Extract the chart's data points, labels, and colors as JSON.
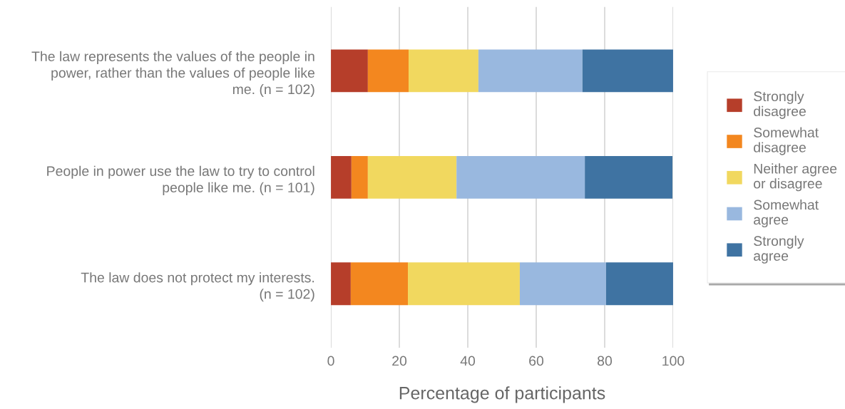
{
  "chart_data": {
    "type": "bar",
    "orientation": "horizontal",
    "stacked": true,
    "xlabel": "Percentage of participants",
    "categories": [
      "The law represents the values of the people in\npower, rather than the values of people like\nme. (n = 102)",
      "People in power use the law to try to control\npeople like me. (n = 101)",
      "The law does not protect my interests.\n(n = 102)"
    ],
    "series": [
      {
        "name": "Strongly\ndisagree",
        "color": "#b63e2a",
        "values": [
          10.8,
          6.0,
          5.8
        ]
      },
      {
        "name": "Somewhat\ndisagree",
        "color": "#f3871f",
        "values": [
          11.9,
          4.8,
          16.7
        ]
      },
      {
        "name": "Neither agree\nor disagree",
        "color": "#f1d85f",
        "values": [
          20.4,
          25.9,
          32.7
        ]
      },
      {
        "name": "Somewhat\nagree",
        "color": "#99b8df",
        "values": [
          30.4,
          37.5,
          25.2
        ]
      },
      {
        "name": "Strongly\nagree",
        "color": "#3f73a2",
        "values": [
          26.5,
          25.6,
          19.6
        ]
      }
    ],
    "xlim": [
      0,
      100
    ],
    "xticks": [
      0,
      20,
      40,
      60,
      80,
      100
    ],
    "grid": "x",
    "legend": "right"
  }
}
